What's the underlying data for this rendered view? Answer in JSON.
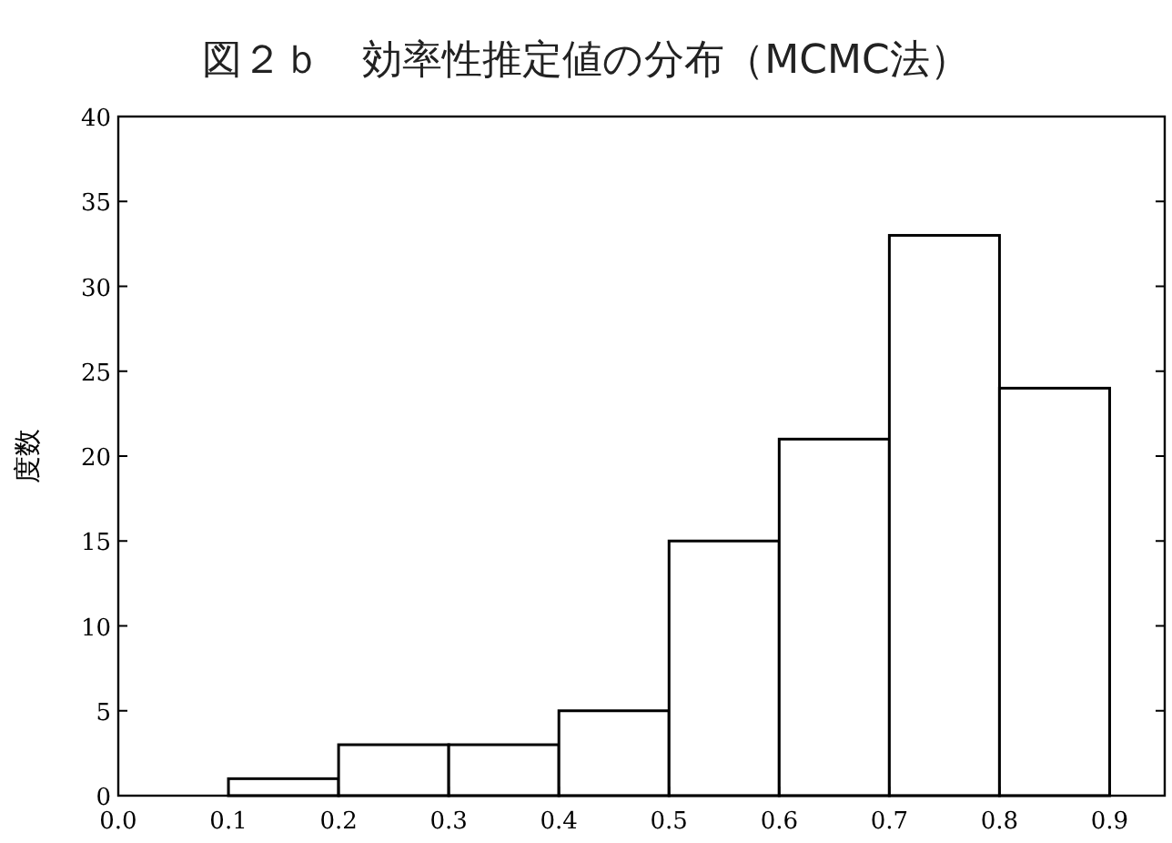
{
  "chart_data": {
    "type": "histogram",
    "title": "図２ｂ　効率性推定値の分布（MCMC法）",
    "ylabel": "度数",
    "bins": [
      0.0,
      0.1,
      0.2,
      0.3,
      0.4,
      0.5,
      0.6,
      0.7,
      0.8,
      0.9
    ],
    "values": [
      0,
      1,
      3,
      3,
      5,
      15,
      21,
      33,
      24
    ],
    "color": "#ffffff",
    "xlim": [
      0,
      0.95
    ],
    "ylim": [
      0,
      40
    ],
    "xticks": [
      {
        "value": 0,
        "label": "0.0"
      },
      0.1,
      0.2,
      0.3,
      0.4,
      0.5,
      0.6,
      0.7,
      0.8,
      0.9
    ],
    "yticks": [
      0,
      5,
      10,
      15,
      20,
      25,
      30,
      35,
      40
    ],
    "grid": false
  }
}
